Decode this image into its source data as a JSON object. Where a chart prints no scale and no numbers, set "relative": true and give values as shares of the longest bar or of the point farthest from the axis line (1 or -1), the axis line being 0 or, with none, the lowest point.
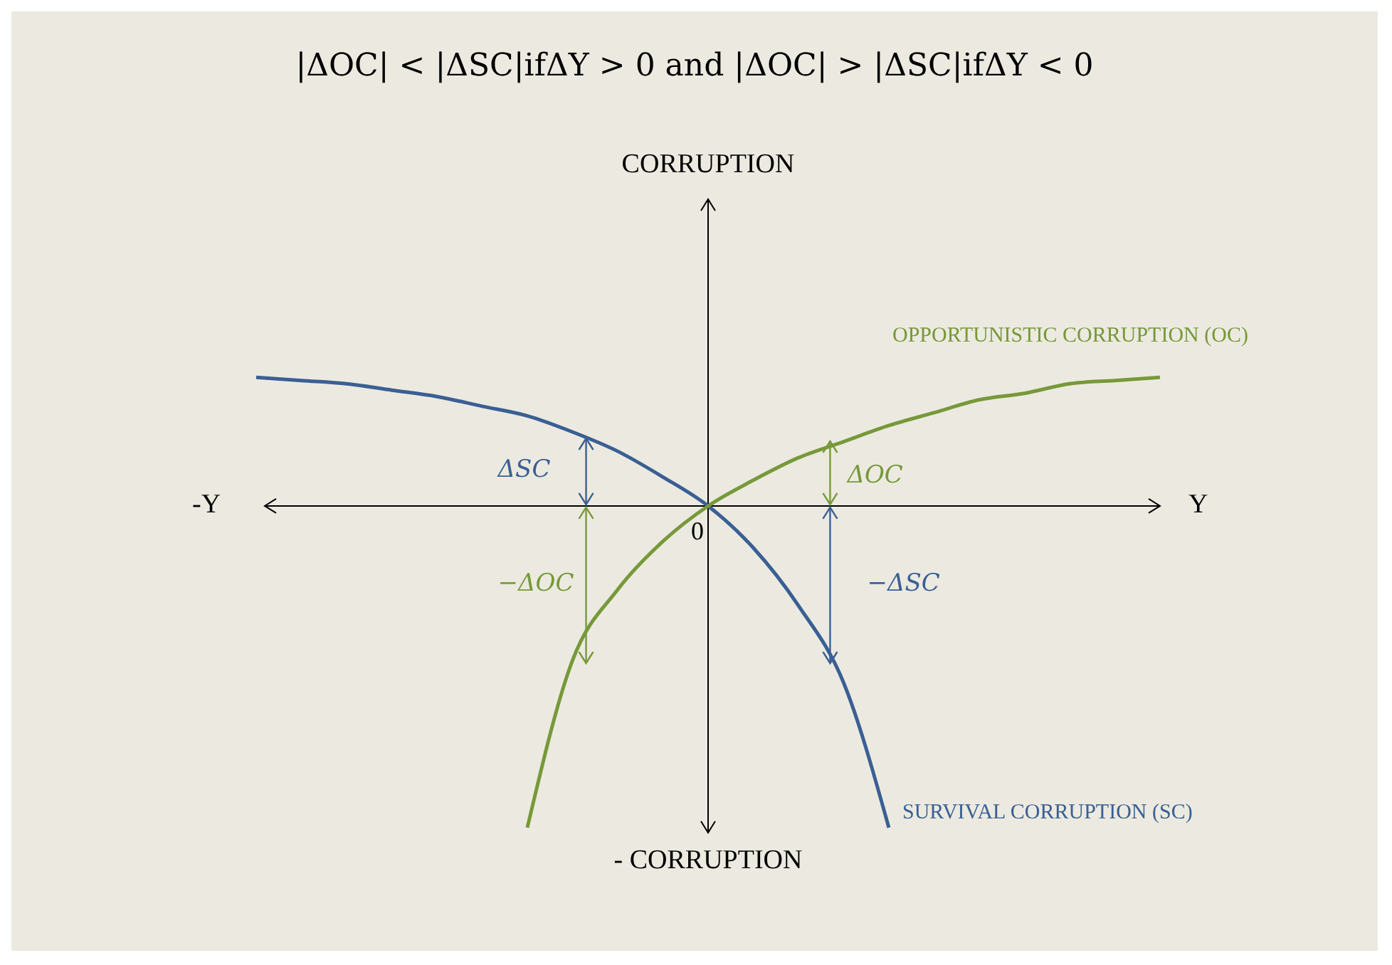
{
  "chart_data": {
    "type": "line",
    "relative": true,
    "title": "|ΔOC| < |ΔSC|ifΔY > 0 and |ΔOC| > |ΔSC|ifΔY < 0",
    "xlabel": "Y",
    "annotations": [
      "CORRUPTION",
      "-Y",
      "- CORRUPTION",
      "0",
      "ΔSC",
      "−ΔOC",
      "ΔOC",
      "−ΔSC"
    ],
    "categories": [
      null,
      null,
      null,
      null,
      null,
      null,
      null,
      null,
      null,
      null,
      null,
      null,
      null,
      null,
      null,
      null,
      null,
      null,
      null,
      null,
      null
    ],
    "series": [
      {
        "name": "SURVIVAL CORRUPTION (SC)",
        "color": "#3a5f94",
        "values": [
          0.4,
          0.39,
          0.38,
          0.36,
          0.34,
          0.31,
          0.28,
          0.23,
          0.17,
          0.09,
          0,
          -0.13,
          -0.31,
          -0.55,
          -1,
          null,
          null,
          null,
          null,
          null,
          null
        ]
      },
      {
        "name": "OPPORTUNISTIC CORRUPTION (OC)",
        "color": "#77993a",
        "values": [
          null,
          null,
          null,
          null,
          null,
          null,
          -1,
          -0.48,
          -0.26,
          -0.11,
          0,
          0.08,
          0.15,
          0.2,
          0.25,
          0.29,
          0.33,
          0.35,
          0.38,
          0.39,
          0.4
        ]
      }
    ]
  }
}
